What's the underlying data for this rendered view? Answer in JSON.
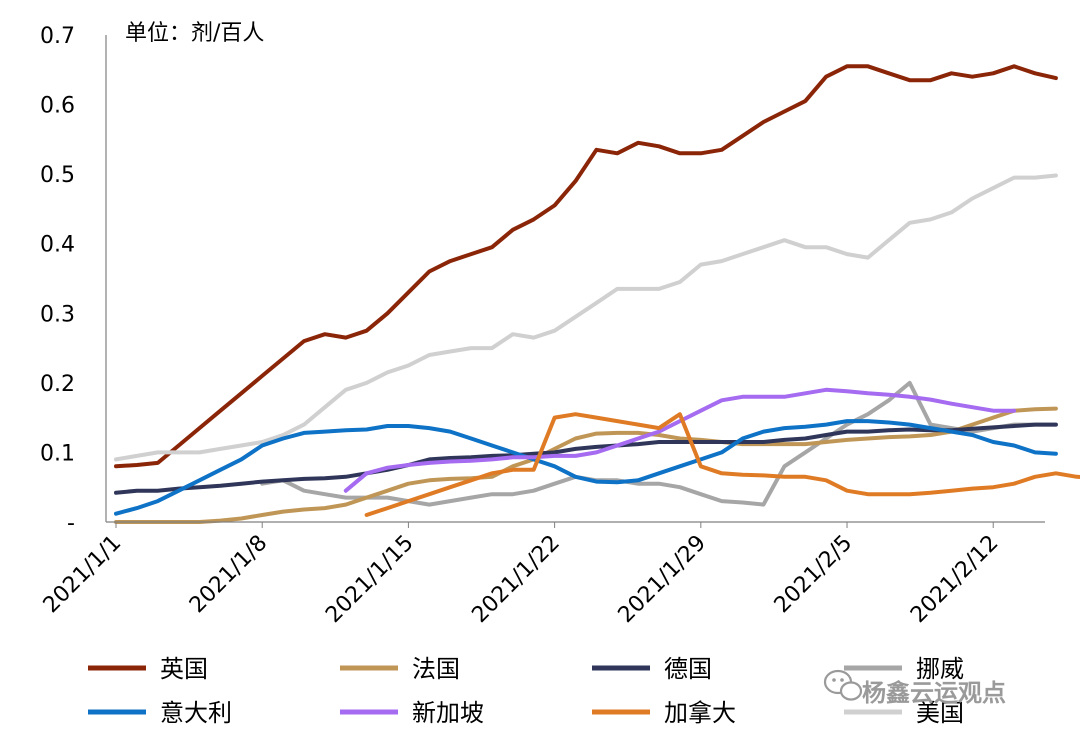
{
  "chart_data": {
    "type": "line",
    "unit_label": "单位：剂/百人",
    "ylim": [
      0,
      0.7
    ],
    "y_ticks": [
      {
        "value": 0,
        "label": "-"
      },
      {
        "value": 0.1,
        "label": "0.1"
      },
      {
        "value": 0.2,
        "label": "0.2"
      },
      {
        "value": 0.3,
        "label": "0.3"
      },
      {
        "value": 0.4,
        "label": "0.4"
      },
      {
        "value": 0.5,
        "label": "0.5"
      },
      {
        "value": 0.6,
        "label": "0.6"
      },
      {
        "value": 0.7,
        "label": "0.7"
      }
    ],
    "x_ticks": [
      "2021/1/1",
      "2021/1/8",
      "2021/1/15",
      "2021/1/22",
      "2021/1/29",
      "2021/2/5",
      "2021/2/12"
    ],
    "x_start": "2021/1/1",
    "x_end": "2021/2/14",
    "grid": false,
    "legend_position": "bottom",
    "series": [
      {
        "name": "英国",
        "color": "#8B2508",
        "start": "2021/1/1",
        "values": [
          0.08,
          0.082,
          0.085,
          0.11,
          0.135,
          0.16,
          0.185,
          0.21,
          0.235,
          0.26,
          0.27,
          0.265,
          0.275,
          0.3,
          0.33,
          0.36,
          0.375,
          0.385,
          0.395,
          0.42,
          0.435,
          0.455,
          0.49,
          0.535,
          0.53,
          0.545,
          0.54,
          0.53,
          0.53,
          0.535,
          0.555,
          0.575,
          0.59,
          0.605,
          0.64,
          0.655,
          0.655,
          0.645,
          0.635,
          0.635,
          0.645,
          0.64,
          0.645,
          0.655,
          0.645,
          0.638
        ]
      },
      {
        "name": "美国",
        "color": "#D0D0D0",
        "start": "2021/1/1",
        "values": [
          0.09,
          0.095,
          0.1,
          0.1,
          0.1,
          0.105,
          0.11,
          0.115,
          0.125,
          0.14,
          0.165,
          0.19,
          0.2,
          0.215,
          0.225,
          0.24,
          0.245,
          0.25,
          0.25,
          0.27,
          0.265,
          0.275,
          0.295,
          0.315,
          0.335,
          0.335,
          0.335,
          0.345,
          0.37,
          0.375,
          0.385,
          0.395,
          0.405,
          0.395,
          0.395,
          0.385,
          0.38,
          0.405,
          0.43,
          0.435,
          0.445,
          0.465,
          0.48,
          0.495,
          0.495,
          0.498
        ]
      },
      {
        "name": "挪威",
        "color": "#A6A6A6",
        "start": "2021/1/1",
        "values": [
          null,
          null,
          null,
          null,
          null,
          null,
          null,
          0.055,
          0.06,
          0.045,
          0.04,
          0.035,
          0.035,
          0.035,
          0.03,
          0.025,
          0.03,
          0.035,
          0.04,
          0.04,
          0.045,
          0.055,
          0.065,
          0.06,
          0.06,
          0.055,
          0.055,
          0.05,
          0.04,
          0.03,
          0.028,
          0.025,
          0.08,
          0.1,
          0.12,
          0.14,
          0.155,
          0.175,
          0.2,
          0.14,
          0.135,
          0.13,
          0.135,
          0.14,
          0.14,
          0.14
        ]
      },
      {
        "name": "法国",
        "color": "#C09657",
        "start": "2021/1/1",
        "values": [
          0,
          0,
          0,
          0,
          0,
          0.002,
          0.005,
          0.01,
          0.015,
          0.018,
          0.02,
          0.025,
          0.035,
          0.045,
          0.055,
          0.06,
          0.062,
          0.063,
          0.065,
          0.08,
          0.09,
          0.105,
          0.12,
          0.127,
          0.128,
          0.128,
          0.125,
          0.12,
          0.118,
          0.115,
          0.112,
          0.112,
          0.112,
          0.112,
          0.115,
          0.118,
          0.12,
          0.122,
          0.123,
          0.125,
          0.13,
          0.14,
          0.15,
          0.16,
          0.162,
          0.163
        ]
      },
      {
        "name": "德国",
        "color": "#2F3659",
        "start": "2021/1/1",
        "values": [
          0.042,
          0.045,
          0.045,
          0.048,
          0.05,
          0.052,
          0.055,
          0.058,
          0.06,
          0.062,
          0.063,
          0.065,
          0.07,
          0.075,
          0.082,
          0.09,
          0.092,
          0.093,
          0.095,
          0.096,
          0.098,
          0.1,
          0.105,
          0.108,
          0.11,
          0.112,
          0.115,
          0.115,
          0.115,
          0.115,
          0.115,
          0.115,
          0.118,
          0.12,
          0.125,
          0.13,
          0.13,
          0.132,
          0.133,
          0.132,
          0.132,
          0.134,
          0.136,
          0.138,
          0.14,
          0.14
        ]
      },
      {
        "name": "意大利",
        "color": "#0E72C6",
        "start": "2021/1/1",
        "values": [
          0.012,
          0.02,
          0.03,
          0.045,
          0.06,
          0.075,
          0.09,
          0.11,
          0.12,
          0.128,
          0.13,
          0.132,
          0.133,
          0.138,
          0.138,
          0.135,
          0.13,
          0.12,
          0.11,
          0.1,
          0.09,
          0.08,
          0.065,
          0.058,
          0.057,
          0.06,
          0.07,
          0.08,
          0.09,
          0.1,
          0.12,
          0.13,
          0.135,
          0.137,
          0.14,
          0.145,
          0.145,
          0.143,
          0.14,
          0.135,
          0.13,
          0.125,
          0.115,
          0.11,
          0.1,
          0.098
        ]
      },
      {
        "name": "新加坡",
        "color": "#A56BF0",
        "start": "2021/1/12",
        "values": [
          0.045,
          0.07,
          0.078,
          0.082,
          0.085,
          0.087,
          0.088,
          0.09,
          0.093,
          0.093,
          0.095,
          0.095,
          0.1,
          0.11,
          0.12,
          0.13,
          0.145,
          0.16,
          0.175,
          0.18,
          0.18,
          0.18,
          0.185,
          0.19,
          0.188,
          0.185,
          0.183,
          0.18,
          0.176,
          0.17,
          0.165,
          0.16,
          0.16
        ]
      },
      {
        "name": "加拿大",
        "color": "#E07B25",
        "start": "2021/1/13",
        "values": [
          0.01,
          0.02,
          0.03,
          0.04,
          0.05,
          0.06,
          0.07,
          0.075,
          0.075,
          0.15,
          0.155,
          0.15,
          0.145,
          0.14,
          0.135,
          0.155,
          0.08,
          0.07,
          0.068,
          0.067,
          0.065,
          0.065,
          0.06,
          0.045,
          0.04,
          0.04,
          0.04,
          0.042,
          0.045,
          0.048,
          0.05,
          0.055,
          0.065,
          0.07,
          0.065,
          0.063
        ]
      }
    ],
    "legend_order": [
      "英国",
      "法国",
      "德国",
      "挪威",
      "意大利",
      "新加坡",
      "加拿大",
      "美国"
    ]
  },
  "watermark": {
    "text": "杨鑫云运观点",
    "icon": "wechat-icon"
  }
}
